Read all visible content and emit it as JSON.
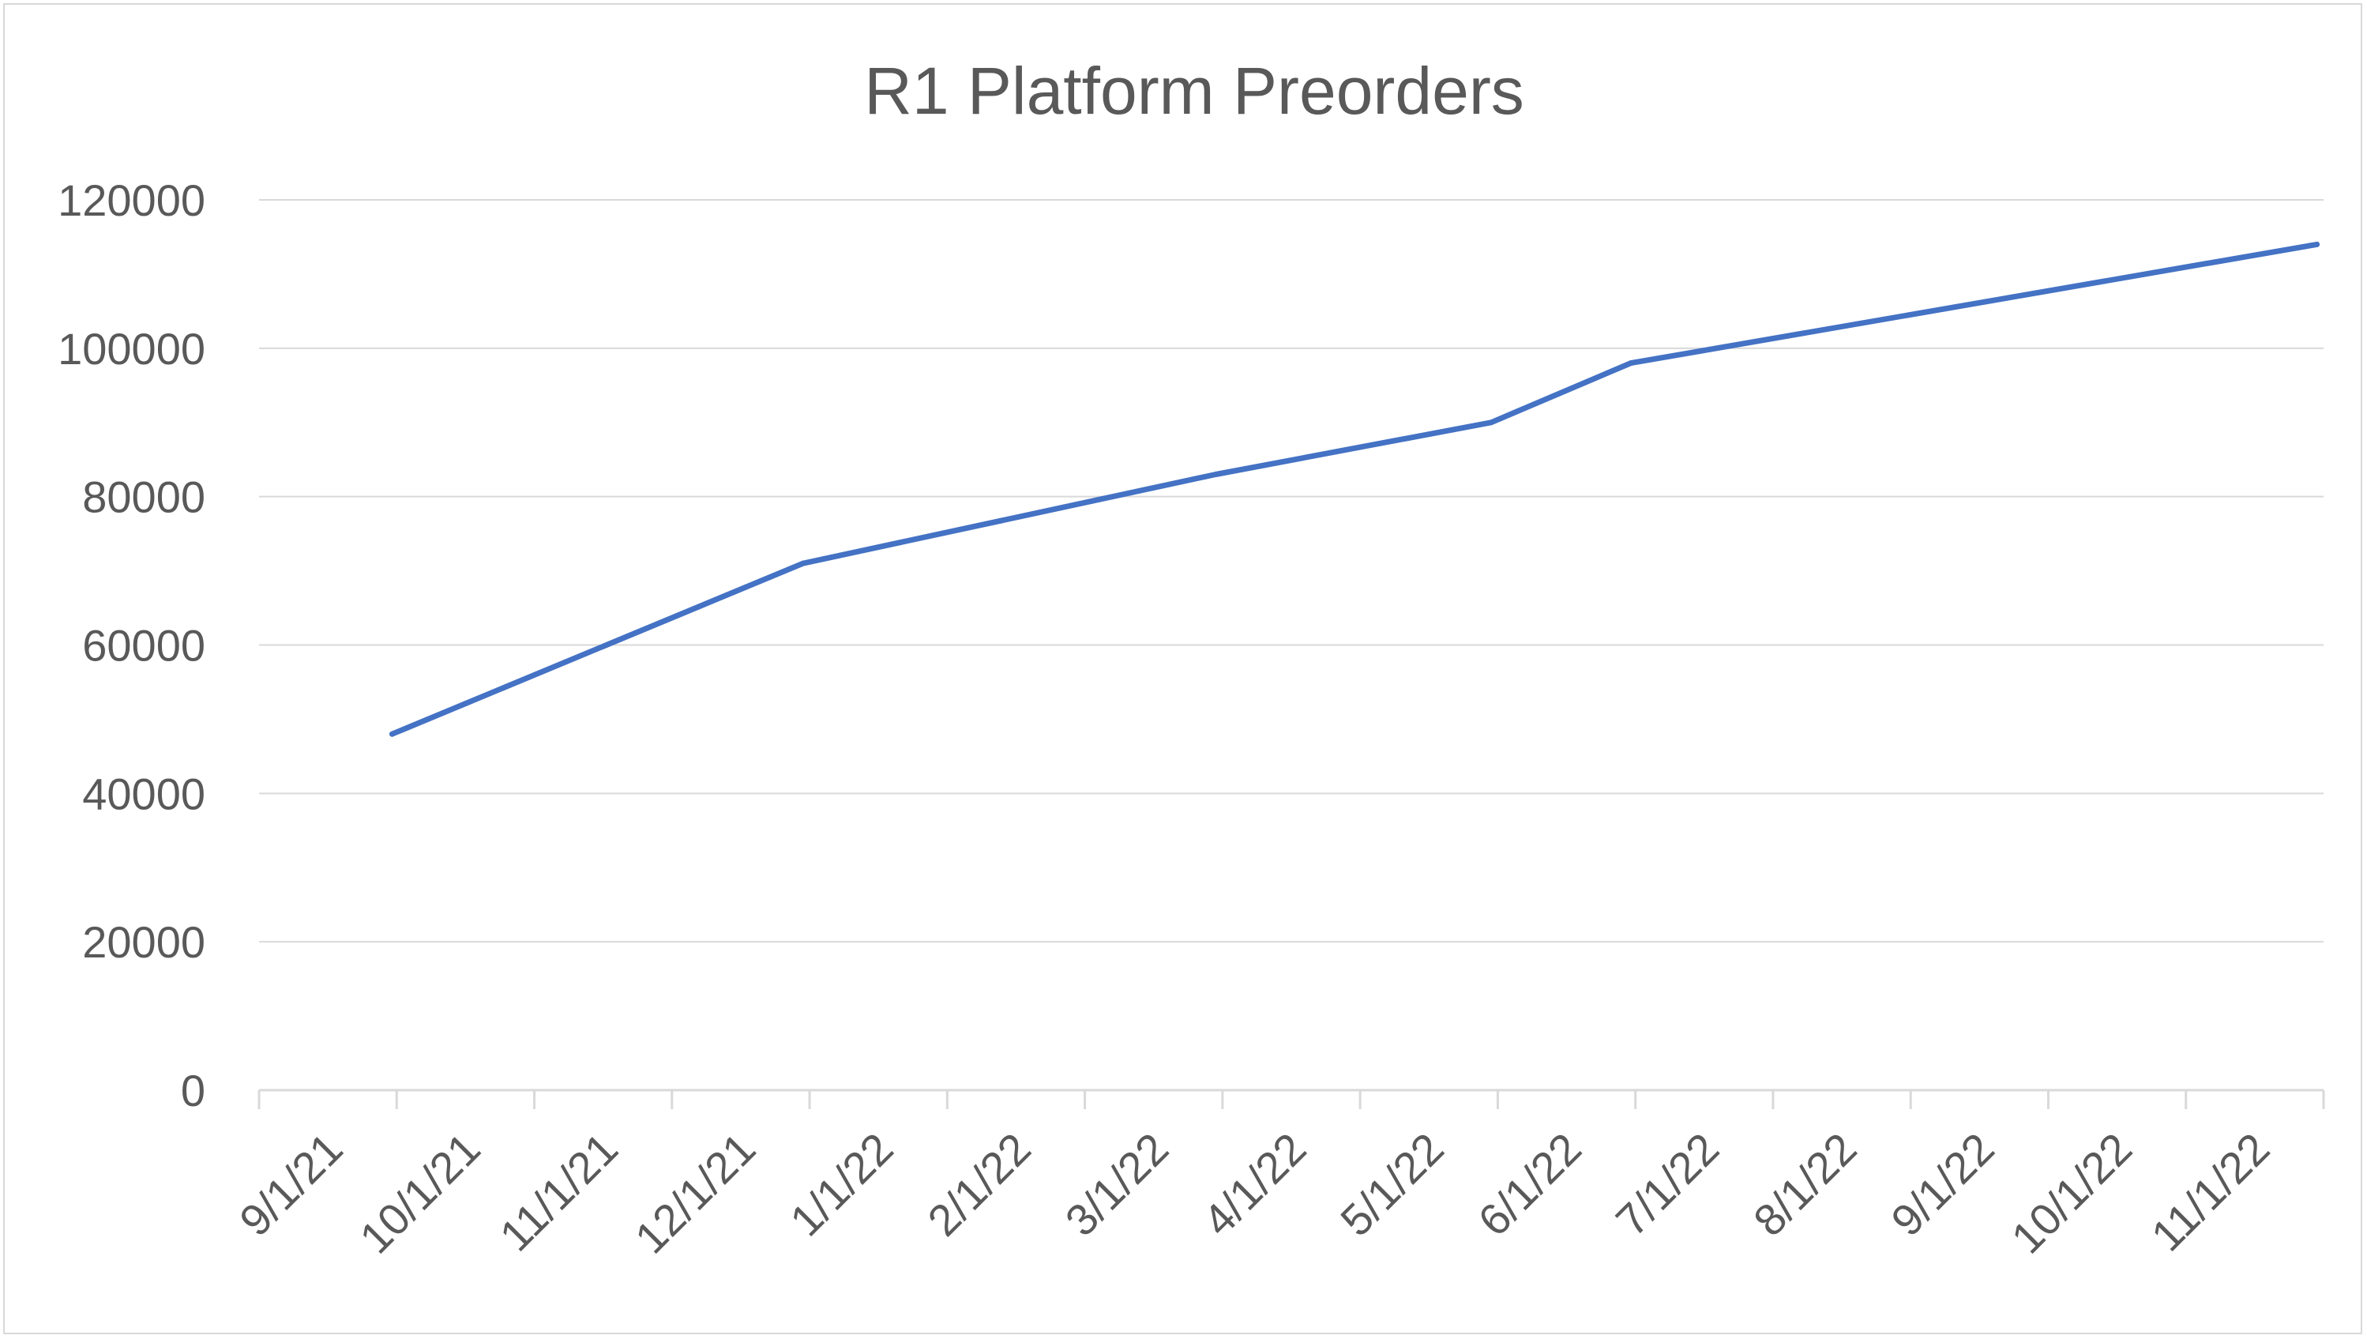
{
  "chart_data": {
    "type": "line",
    "title": "R1 Platform Preorders",
    "xlabel": "",
    "ylabel": "",
    "categories": [
      "9/1/21",
      "10/1/21",
      "11/1/21",
      "12/1/21",
      "1/1/22",
      "2/1/22",
      "3/1/22",
      "4/1/22",
      "5/1/22",
      "6/1/22",
      "7/1/22",
      "8/1/22",
      "9/1/22",
      "10/1/22",
      "11/1/22"
    ],
    "y_ticks": [
      "0",
      "20000",
      "40000",
      "60000",
      "80000",
      "100000",
      "120000"
    ],
    "ylim": [
      0,
      120000
    ],
    "grid": true,
    "legend": "none",
    "series": [
      {
        "color": "#4472c4",
        "points": [
          {
            "x": "9/15/21",
            "y": 48000
          },
          {
            "x": "12/15/21",
            "y": 71000
          },
          {
            "x": "3/15/22",
            "y": 83000
          },
          {
            "x": "5/15/22",
            "y": 90000
          },
          {
            "x": "6/15/22",
            "y": 98000
          },
          {
            "x": "11/15/22",
            "y": 114000
          }
        ]
      }
    ]
  }
}
